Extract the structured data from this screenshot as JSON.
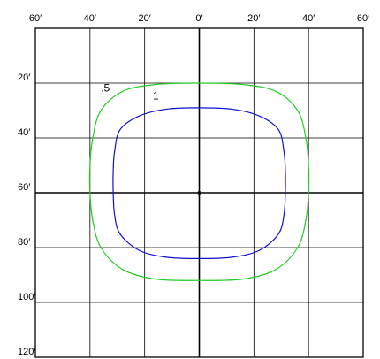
{
  "chart_data": {
    "type": "line",
    "title": "",
    "xlabel": "",
    "ylabel": "",
    "x_tick_labels": [
      "60′",
      "40′",
      "20′",
      "0′",
      "20′",
      "40′",
      "60′"
    ],
    "y_tick_labels": [
      "20′",
      "40′",
      "60′",
      "80′",
      "100′",
      "120′"
    ],
    "xlim": [
      -60,
      60
    ],
    "ylim": [
      0,
      120
    ],
    "grid": true,
    "center_marker": {
      "x": 0,
      "y": 60
    },
    "series": [
      {
        "name": ".5",
        "color": "#22cc22",
        "x": [
          0,
          16,
          28,
          36,
          39,
          40,
          40,
          39,
          36,
          28,
          16,
          0,
          -16,
          -28,
          -36,
          -39,
          -40,
          -40,
          -39,
          -36,
          -28,
          -16,
          0
        ],
        "y": [
          20,
          20.5,
          23,
          30,
          40,
          50,
          60,
          70,
          80,
          88,
          91.5,
          92,
          91.5,
          88,
          80,
          70,
          60,
          50,
          40,
          30,
          23,
          20.5,
          20
        ]
      },
      {
        "name": "1",
        "color": "#1111cc",
        "x": [
          0,
          12,
          22,
          29,
          31,
          31.5,
          31.5,
          31,
          29,
          22,
          12,
          0,
          -12,
          -22,
          -29,
          -31,
          -31.5,
          -31.5,
          -31,
          -29,
          -22,
          -12,
          0
        ],
        "y": [
          29,
          29.5,
          32,
          37,
          45,
          52,
          60,
          68,
          75,
          81,
          83.5,
          84,
          83.5,
          81,
          75,
          68,
          60,
          52,
          45,
          37,
          32,
          29.5,
          29
        ]
      }
    ],
    "annotations": [
      {
        "text": ".5",
        "x": -36,
        "y": 23
      },
      {
        "text": "1",
        "x": -17,
        "y": 26
      }
    ]
  }
}
